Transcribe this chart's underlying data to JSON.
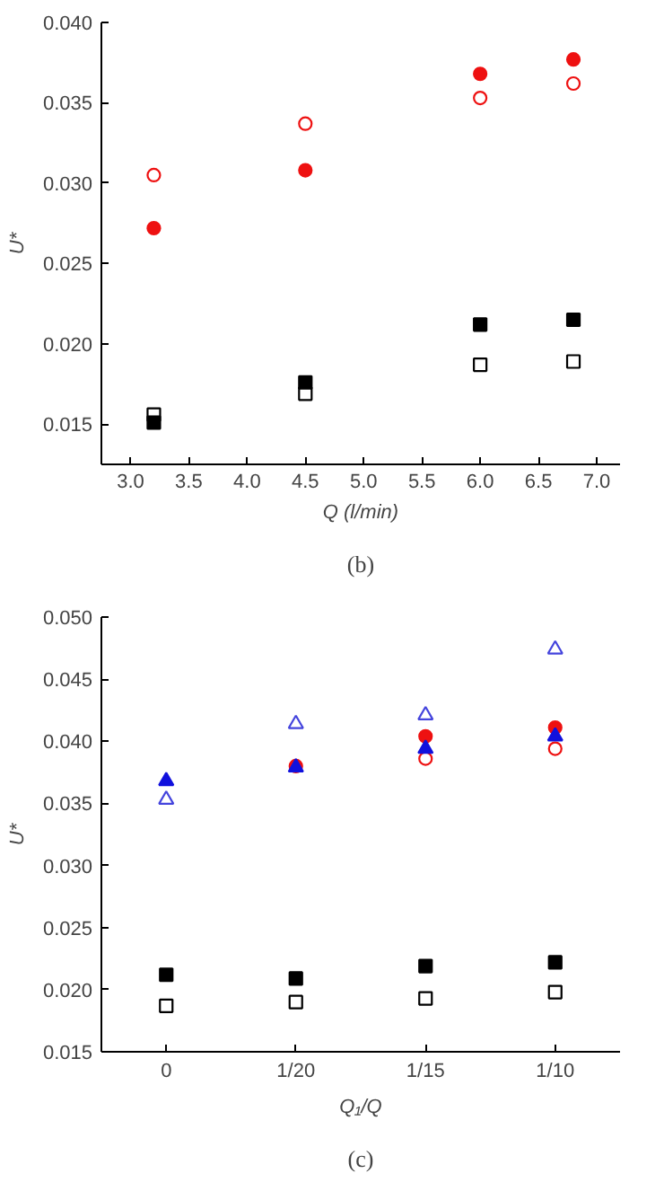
{
  "chart_data": [
    {
      "type": "scatter",
      "xlabel": "Q (l/min)",
      "ylabel": "U*",
      "x": [
        3.2,
        4.5,
        6.0,
        6.8
      ],
      "xlim": [
        2.75,
        7.2
      ],
      "xticks": [
        {
          "value": 3,
          "label": "3.0"
        },
        3.5,
        {
          "value": 4,
          "label": "4.0"
        },
        4.5,
        {
          "value": 5,
          "label": "5.0"
        },
        5.5,
        {
          "value": 6,
          "label": "6.0"
        },
        6.5,
        {
          "value": 7,
          "label": "7.0"
        }
      ],
      "ylim": [
        0.0125,
        0.04
      ],
      "yticks": [
        0.015,
        {
          "value": 0.02,
          "label": "0.020"
        },
        0.025,
        {
          "value": 0.03,
          "label": "0.030"
        },
        0.035,
        {
          "value": 0.04,
          "label": "0.040"
        }
      ],
      "grid": false,
      "annotations": [
        "(b)"
      ],
      "series": [
        {
          "color": "#ee1111",
          "marker": "circle",
          "values": [
            0.0272,
            0.0308,
            0.0368,
            0.0377
          ]
        },
        {
          "color": "#ee1111",
          "marker": "circle_open",
          "values": [
            0.0305,
            0.0337,
            0.0353,
            0.0362
          ]
        },
        {
          "color": "#000000",
          "marker": "square",
          "values": [
            0.0151,
            0.0176,
            0.0212,
            0.0215
          ]
        },
        {
          "color": "#000000",
          "marker": "square_open",
          "values": [
            0.0156,
            0.0169,
            0.0187,
            0.0189
          ]
        }
      ]
    },
    {
      "type": "scatter",
      "xlabel": "Q₁/Q",
      "ylabel": "U*",
      "categories": [
        "0",
        "1/20",
        "1/15",
        "1/10"
      ],
      "ylim": [
        0.015,
        0.05
      ],
      "yticks": [
        0.015,
        {
          "value": 0.02,
          "label": "0.020"
        },
        0.025,
        {
          "value": 0.03,
          "label": "0.030"
        },
        0.035,
        {
          "value": 0.04,
          "label": "0.040"
        },
        0.045,
        {
          "value": 0.05,
          "label": "0.050"
        }
      ],
      "grid": false,
      "annotations": [
        "(c)"
      ],
      "series": [
        {
          "color": "#ee1111",
          "marker": "circle",
          "values": [
            null,
            0.038,
            0.0404,
            0.0411
          ]
        },
        {
          "color": "#ee1111",
          "marker": "circle_open",
          "values": [
            null,
            null,
            0.0386,
            0.0394
          ]
        },
        {
          "color": "#1111dd",
          "marker": "triangle",
          "values": [
            0.0368,
            0.0379,
            0.0394,
            0.0404
          ]
        },
        {
          "color": "#4444dd",
          "marker": "triangle_open",
          "values": [
            0.0353,
            0.0414,
            0.0421,
            0.0474
          ]
        },
        {
          "color": "#000000",
          "marker": "square",
          "values": [
            0.0212,
            0.0209,
            0.0219,
            0.0222
          ]
        },
        {
          "color": "#000000",
          "marker": "square_open",
          "values": [
            0.0187,
            0.019,
            0.0193,
            0.0198
          ]
        }
      ]
    }
  ]
}
